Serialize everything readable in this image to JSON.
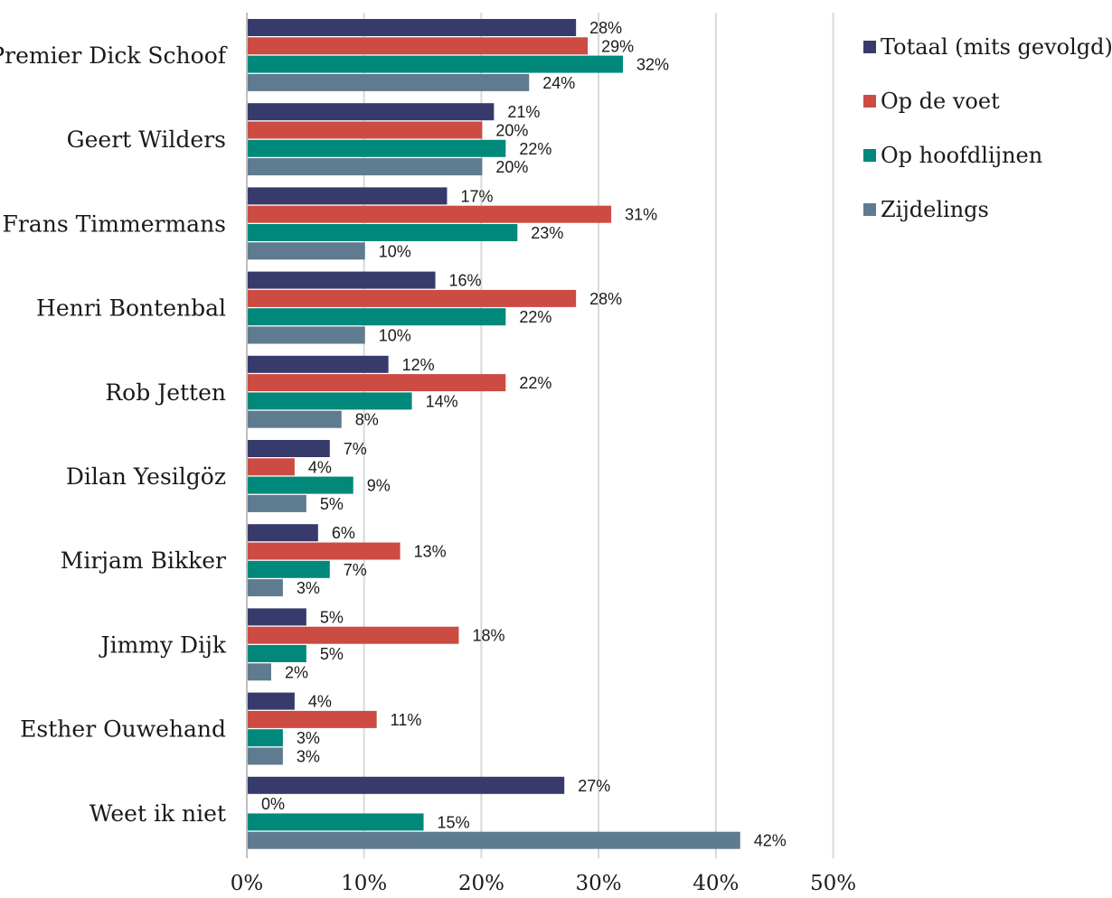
{
  "chart_data": {
    "type": "bar",
    "orientation": "horizontal",
    "categories": [
      "Premier Dick Schoof",
      "Geert Wilders",
      "Frans Timmermans",
      "Henri Bontenbal",
      "Rob Jetten",
      "Dilan Yesilgöz",
      "Mirjam Bikker",
      "Jimmy Dijk",
      "Esther Ouwehand",
      "Weet ik niet"
    ],
    "series": [
      {
        "name": "Totaal (mits gevolgd)",
        "color": "#363b6b",
        "values": [
          28,
          21,
          17,
          16,
          12,
          7,
          6,
          5,
          4,
          27
        ],
        "labels": [
          "28%",
          "21%",
          "17%",
          "16%",
          "12%",
          "7%",
          "6%",
          "5%",
          "4%",
          "27%"
        ]
      },
      {
        "name": "Op de voet",
        "color": "#cc4b42",
        "values": [
          29,
          20,
          31,
          28,
          22,
          4,
          13,
          18,
          11,
          0
        ],
        "labels": [
          "29%",
          "20%",
          "31%",
          "28%",
          "22%",
          "4%",
          "13%",
          "18%",
          "11%",
          "0%"
        ]
      },
      {
        "name": "Op hoofdlijnen",
        "color": "#00887a",
        "values": [
          32,
          22,
          23,
          22,
          14,
          9,
          7,
          5,
          3,
          15
        ],
        "labels": [
          "32%",
          "22%",
          "23%",
          "22%",
          "14%",
          "9%",
          "7%",
          "5%",
          "3%",
          "15%"
        ]
      },
      {
        "name": "Zijdelings",
        "color": "#5e7b8f",
        "values": [
          24,
          20,
          10,
          10,
          8,
          5,
          3,
          2,
          3,
          42
        ],
        "labels": [
          "24%",
          "20%",
          "10%",
          "10%",
          "8%",
          "5%",
          "3%",
          "2%",
          "3%",
          "42%"
        ]
      }
    ],
    "xlim": [
      0,
      50
    ],
    "xticks": [
      "0%",
      "10%",
      "20%",
      "30%",
      "40%",
      "50%"
    ],
    "grid": true,
    "legend_position": "top-right"
  }
}
